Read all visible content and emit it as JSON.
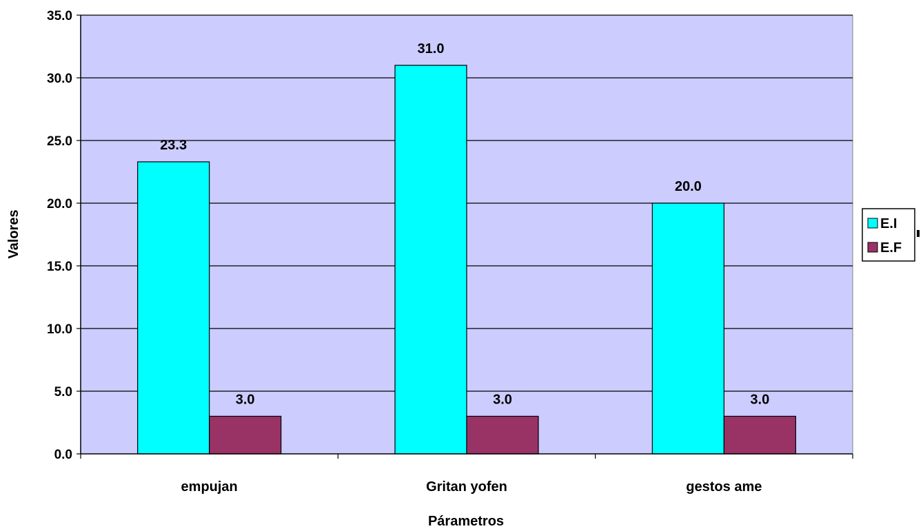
{
  "chart_data": {
    "type": "bar",
    "title": "",
    "xlabel": "Párametros",
    "ylabel": "Valores",
    "categories": [
      "empujan",
      "Gritan yofen",
      "gestos ame"
    ],
    "series": [
      {
        "name": "E.I",
        "color": "#00FFFF",
        "values": [
          23.3,
          31.0,
          20.0
        ],
        "labels": [
          "23.3",
          "31.0",
          "20.0"
        ]
      },
      {
        "name": "E.F",
        "color": "#993366",
        "values": [
          3.0,
          3.0,
          3.0
        ],
        "labels": [
          "3.0",
          "3.0",
          "3.0"
        ]
      }
    ],
    "ylim": [
      0,
      35
    ],
    "yticks": [
      "0.0",
      "5.0",
      "10.0",
      "15.0",
      "20.0",
      "25.0",
      "30.0",
      "35.0"
    ],
    "grid": true,
    "plot_background": "#CCCCFF",
    "legend_position": "right"
  }
}
